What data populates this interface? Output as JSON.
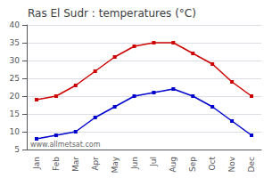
{
  "chart_data": {
    "type": "line",
    "title": "Ras El Sudr : temperatures (°C)",
    "categories": [
      "Jan",
      "Feb",
      "Mar",
      "Apr",
      "May",
      "Jun",
      "Jul",
      "Aug",
      "Sep",
      "Oct",
      "Nov",
      "Dec"
    ],
    "series": [
      {
        "color": "#cc0000",
        "marker": "square",
        "values": [
          19,
          20,
          23,
          27,
          31,
          34,
          35,
          35,
          32,
          29,
          24,
          20
        ]
      },
      {
        "color": "#0000cc",
        "marker": "square",
        "values": [
          8,
          9,
          10,
          14,
          17,
          20,
          21,
          22,
          20,
          17,
          13,
          9
        ]
      }
    ],
    "ylim": [
      5,
      40
    ],
    "yticks": [
      5,
      10,
      15,
      20,
      25,
      30,
      35,
      40
    ],
    "grid": true,
    "annotation": "www.allmetsat.com"
  }
}
